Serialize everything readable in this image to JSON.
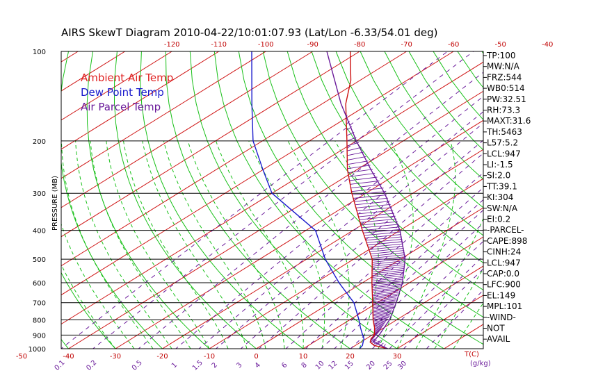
{
  "chart_data": {
    "type": "line",
    "title": "AIRS SkewT Diagram 2010-04-22/10:01:07.93 (Lat/Lon -6.33/54.01 deg)",
    "ylabel": "PRESSURE (MB)",
    "xlabel": "T(C)",
    "mixing_ratio_unit": "(g/kg)",
    "y_scale": "log",
    "ylim": [
      1000,
      100
    ],
    "pressure_ticks": [
      100,
      200,
      300,
      400,
      500,
      600,
      700,
      800,
      900,
      1000
    ],
    "top_temp_ticks": [
      -120,
      -110,
      -100,
      -90,
      -80,
      -70,
      -60,
      -50,
      -40
    ],
    "bottom_temp_ticks": [
      -50,
      -40,
      -30,
      -20,
      -10,
      0,
      10,
      20,
      30
    ],
    "mixing_ratio_ticks": [
      "0.1",
      "0.2",
      "0.5",
      "1",
      "1.5",
      "2",
      "3",
      "4",
      "6",
      "8",
      "10",
      "12",
      "15",
      "20",
      "25",
      "30"
    ],
    "legend": [
      {
        "name": "Ambient Air Temp",
        "color": "#e02020"
      },
      {
        "name": "Dew Point Temp",
        "color": "#1a1acc"
      },
      {
        "name": "Air Parcel Temp",
        "color": "#6a1a9a"
      }
    ],
    "series": [
      {
        "name": "Ambient Air Temp",
        "color": "#cc1010",
        "points": [
          [
            1000,
            28
          ],
          [
            975,
            24
          ],
          [
            950,
            22
          ],
          [
            925,
            21
          ],
          [
            900,
            20.5
          ],
          [
            850,
            18
          ],
          [
            800,
            15
          ],
          [
            700,
            9
          ],
          [
            600,
            2
          ],
          [
            500,
            -6
          ],
          [
            400,
            -18
          ],
          [
            300,
            -33
          ],
          [
            250,
            -42
          ],
          [
            200,
            -52
          ],
          [
            150,
            -65
          ],
          [
            125,
            -72
          ],
          [
            100,
            -82
          ]
        ]
      },
      {
        "name": "Dew Point Temp",
        "color": "#1a1acc",
        "points": [
          [
            1000,
            22
          ],
          [
            975,
            21.5
          ],
          [
            950,
            20.5
          ],
          [
            925,
            19.5
          ],
          [
            900,
            18
          ],
          [
            850,
            15
          ],
          [
            800,
            12
          ],
          [
            700,
            5
          ],
          [
            600,
            -5
          ],
          [
            500,
            -16
          ],
          [
            400,
            -28
          ],
          [
            300,
            -50
          ],
          [
            250,
            -60
          ],
          [
            200,
            -72
          ],
          [
            150,
            -85
          ],
          [
            100,
            -103
          ]
        ]
      },
      {
        "name": "Air Parcel Temp",
        "color": "#6a1a9a",
        "points": [
          [
            1000,
            28
          ],
          [
            947,
            22.5
          ],
          [
            900,
            21.5
          ],
          [
            800,
            18.5
          ],
          [
            700,
            14
          ],
          [
            600,
            8.5
          ],
          [
            500,
            1
          ],
          [
            400,
            -10
          ],
          [
            300,
            -26
          ],
          [
            250,
            -37
          ],
          [
            200,
            -50
          ],
          [
            150,
            -66
          ],
          [
            100,
            -87
          ]
        ]
      }
    ]
  },
  "indices": [
    "TP:100",
    "MW:N/A",
    "FRZ:544",
    "WB0:514",
    "PW:32.51",
    "RH:73.3",
    "MAXT:31.6",
    "TH:5463",
    "L57:5.2",
    "LCL:947",
    "LI:-1.5",
    "SI:2.0",
    "TT:39.1",
    "KI:304",
    "SW:N/A",
    "EI:0.2",
    "-PARCEL-",
    "CAPE:898",
    "CINH:24",
    "LCL:947",
    "CAP:0.0",
    "LFC:900",
    "EL:149",
    "MPL:101",
    "-WIND-",
    "NOT",
    "AVAIL"
  ],
  "colors": {
    "isotherm": "#d01818",
    "dry_adiabat": "#18c018",
    "moist_adiabat": "#18c018",
    "mixing_ratio": "#6a1a9a",
    "isobar": "#000000"
  }
}
